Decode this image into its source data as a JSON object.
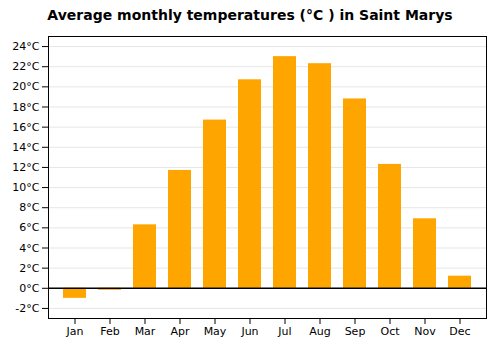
{
  "chart_data": {
    "type": "bar",
    "title": "Average monthly temperatures (°C ) in Saint Marys",
    "categories": [
      "Jan",
      "Feb",
      "Mar",
      "Apr",
      "May",
      "Jun",
      "Jul",
      "Aug",
      "Sep",
      "Oct",
      "Nov",
      "Dec"
    ],
    "values": [
      -1.0,
      -0.2,
      6.3,
      11.7,
      16.7,
      20.7,
      23.0,
      22.3,
      18.8,
      12.3,
      6.9,
      1.2
    ],
    "color": "#FFA500",
    "ylim": [
      -3,
      25
    ],
    "yticks": [
      {
        "value": -2,
        "label": "-2°C"
      },
      {
        "value": 0,
        "label": "0°C"
      },
      {
        "value": 2,
        "label": "2°C"
      },
      {
        "value": 4,
        "label": "4°C"
      },
      {
        "value": 6,
        "label": "6°C"
      },
      {
        "value": 8,
        "label": "8°C"
      },
      {
        "value": 10,
        "label": "10°C"
      },
      {
        "value": 12,
        "label": "12°C"
      },
      {
        "value": 14,
        "label": "14°C"
      },
      {
        "value": 16,
        "label": "16°C"
      },
      {
        "value": 18,
        "label": "18°C"
      },
      {
        "value": 20,
        "label": "20°C"
      },
      {
        "value": 22,
        "label": "22°C"
      },
      {
        "value": 24,
        "label": "24°C"
      }
    ],
    "grid": true
  }
}
